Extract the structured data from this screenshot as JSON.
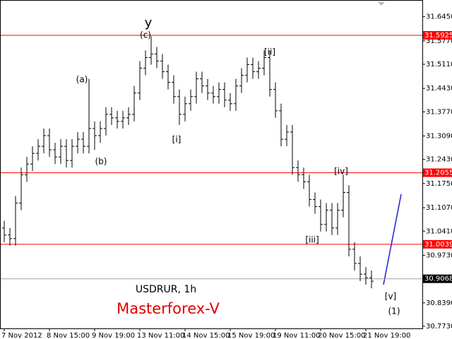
{
  "chart_data": {
    "type": "ohlc",
    "symbol": "USDRUR, 1h",
    "brand": "Masterforex-V",
    "categories": [
      "7 Nov 2012",
      null,
      null,
      null,
      null,
      null,
      null,
      null,
      "8 Nov 15:00",
      null,
      null,
      null,
      null,
      null,
      null,
      null,
      "9 Nov 19:00",
      null,
      null,
      null,
      null,
      null,
      null,
      null,
      "13 Nov 11:00",
      null,
      null,
      null,
      null,
      null,
      null,
      null,
      "14 Nov 15:00",
      null,
      null,
      null,
      null,
      null,
      null,
      null,
      "15 Nov 19:00",
      null,
      null,
      null,
      null,
      null,
      null,
      null,
      "19 Nov 11:00",
      null,
      null,
      null,
      null,
      null,
      null,
      null,
      "20 Nov 15:00",
      null,
      null,
      null,
      null,
      null,
      null,
      null,
      "21 Nov 19:00",
      null
    ],
    "open": [
      31.05,
      31.03,
      31.02,
      31.12,
      31.2,
      31.23,
      31.26,
      31.28,
      31.31,
      31.27,
      31.25,
      31.28,
      31.24,
      31.28,
      31.3,
      31.28,
      31.33,
      31.31,
      31.33,
      31.37,
      31.36,
      31.35,
      31.36,
      31.37,
      31.43,
      31.5,
      31.53,
      31.54,
      31.52,
      31.49,
      31.46,
      31.42,
      31.37,
      31.4,
      31.42,
      31.47,
      31.45,
      31.43,
      31.42,
      31.44,
      31.41,
      31.4,
      31.45,
      31.48,
      31.51,
      31.49,
      31.5,
      31.53,
      31.44,
      31.38,
      31.3,
      31.32,
      31.22,
      31.2,
      31.18,
      31.13,
      31.11,
      31.06,
      31.1,
      31.05,
      31.1,
      31.15,
      30.99,
      30.95,
      30.92,
      30.91
    ],
    "high": [
      31.07,
      31.05,
      31.14,
      31.22,
      31.25,
      31.28,
      31.3,
      31.33,
      31.33,
      31.29,
      31.3,
      31.3,
      31.3,
      31.32,
      31.32,
      31.47,
      31.35,
      31.35,
      31.39,
      31.39,
      31.38,
      31.38,
      31.39,
      31.45,
      31.52,
      31.55,
      31.59,
      31.56,
      31.54,
      31.51,
      31.48,
      31.44,
      31.42,
      31.44,
      31.49,
      31.49,
      31.47,
      31.45,
      31.46,
      31.46,
      31.43,
      31.47,
      31.5,
      31.53,
      31.53,
      31.52,
      31.55,
      31.55,
      31.46,
      31.4,
      31.34,
      31.34,
      31.24,
      31.22,
      31.2,
      31.15,
      31.13,
      31.12,
      31.12,
      31.12,
      31.2,
      31.17,
      31.01,
      30.97,
      30.94,
      30.93
    ],
    "low": [
      31.01,
      31.0,
      31.0,
      31.1,
      31.18,
      31.21,
      31.24,
      31.26,
      31.25,
      31.23,
      31.23,
      31.22,
      31.22,
      31.26,
      31.26,
      31.26,
      31.27,
      31.29,
      31.31,
      31.34,
      31.33,
      31.33,
      31.34,
      31.35,
      31.41,
      31.48,
      31.51,
      31.5,
      31.47,
      31.44,
      31.4,
      31.34,
      31.35,
      31.38,
      31.4,
      31.43,
      31.41,
      31.4,
      31.4,
      31.39,
      31.38,
      31.38,
      31.43,
      31.46,
      31.47,
      31.47,
      31.48,
      31.42,
      31.36,
      31.28,
      31.28,
      31.2,
      31.18,
      31.16,
      31.11,
      31.09,
      31.04,
      31.04,
      31.03,
      31.03,
      31.08,
      30.97,
      30.93,
      30.9,
      30.89,
      30.88
    ],
    "close": [
      31.03,
      31.02,
      31.12,
      31.2,
      31.23,
      31.26,
      31.28,
      31.31,
      31.27,
      31.25,
      31.28,
      31.24,
      31.28,
      31.3,
      31.28,
      31.33,
      31.31,
      31.33,
      31.37,
      31.36,
      31.35,
      31.36,
      31.37,
      31.43,
      31.5,
      31.53,
      31.54,
      31.52,
      31.49,
      31.46,
      31.42,
      31.37,
      31.4,
      31.42,
      31.47,
      31.45,
      31.43,
      31.42,
      31.44,
      31.41,
      31.4,
      31.45,
      31.48,
      31.51,
      31.49,
      31.5,
      31.53,
      31.44,
      31.38,
      31.3,
      31.32,
      31.22,
      31.2,
      31.18,
      31.13,
      31.11,
      31.06,
      31.1,
      31.05,
      31.1,
      31.15,
      30.99,
      30.95,
      30.92,
      30.91,
      30.9
    ],
    "color": "#000000",
    "ylim": [
      30.767,
      31.692
    ],
    "yticks": [
      {
        "value": 31.645,
        "label": "31.6450"
      },
      {
        "value": 31.577,
        "label": "31.5770"
      },
      {
        "value": 31.511,
        "label": "31.5110"
      },
      {
        "value": 31.443,
        "label": "31.4430"
      },
      {
        "value": 31.377,
        "label": "31.3770"
      },
      {
        "value": 31.309,
        "label": "31.3090"
      },
      {
        "value": 31.243,
        "label": "31.2430"
      },
      {
        "value": 31.175,
        "label": "31.1750"
      },
      {
        "value": 31.107,
        "label": "31.1070"
      },
      {
        "value": 31.041,
        "label": "31.0410"
      },
      {
        "value": 30.973,
        "label": "30.9730"
      },
      {
        "value": 30.839,
        "label": "30.8390"
      },
      {
        "value": 30.773,
        "label": "30.7730"
      }
    ],
    "levels": [
      {
        "value": 31.5925,
        "color": "#ff0000"
      },
      {
        "value": 31.2055,
        "color": "#ff0000"
      },
      {
        "value": 31.0039,
        "color": "#ff0000"
      }
    ],
    "last_price": 30.9068,
    "annotations": [
      "y",
      "(c)",
      "(a)",
      "(b)",
      "[i]",
      "[ii]",
      "[iii]",
      "[iv]",
      "[v]",
      "(1)"
    ]
  }
}
